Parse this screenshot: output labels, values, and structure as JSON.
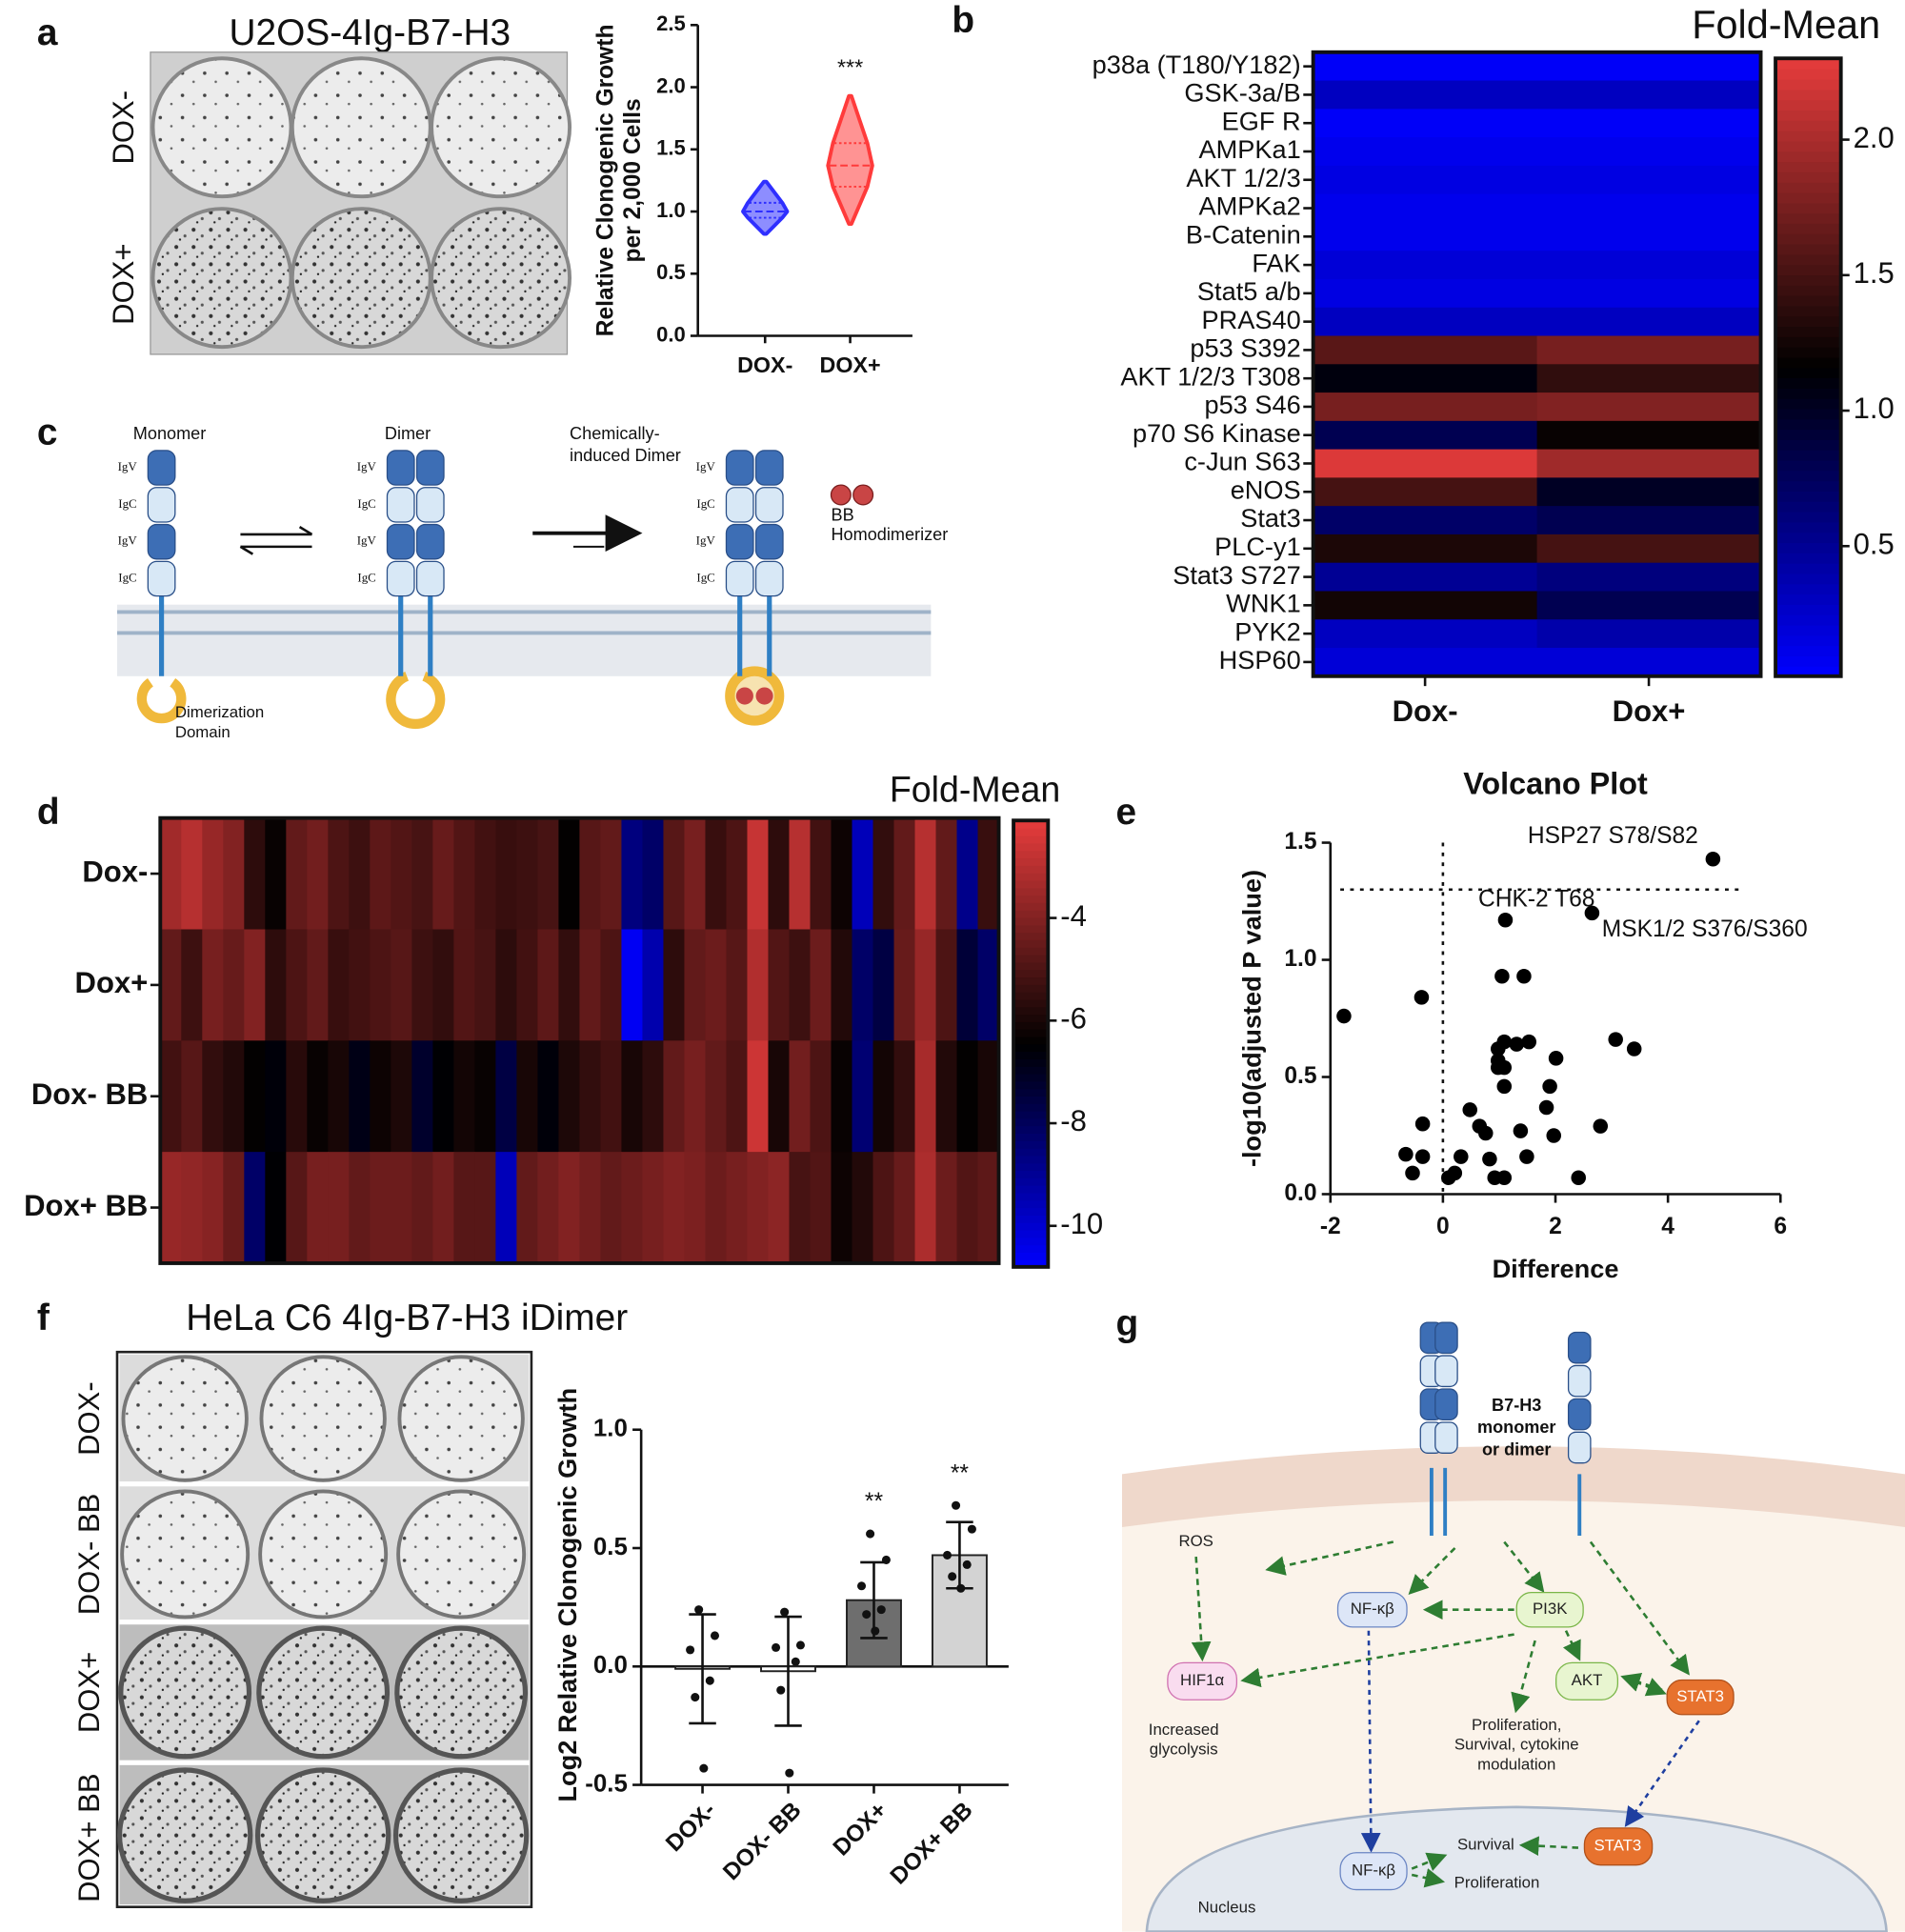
{
  "panel_labels": [
    "a",
    "b",
    "c",
    "d",
    "e",
    "f",
    "g"
  ],
  "panel_a": {
    "title": "U2OS-4Ig-B7-H3",
    "row_labels": [
      "DOX-",
      "DOX+"
    ]
  },
  "panel_c": {
    "monomer": "Monomer",
    "dimer": "Dimer",
    "chem_dimer": [
      "Chemically-",
      "induced Dimer"
    ],
    "homodimerizer": [
      "BB",
      "Homodimerizer"
    ],
    "domain": [
      "Dimerization",
      "Domain"
    ],
    "ig_domains": [
      "IgV",
      "IgC",
      "IgV",
      "IgC"
    ]
  },
  "panel_f": {
    "title": "HeLa C6 4Ig-B7-H3 iDimer",
    "row_labels": [
      "DOX-",
      "DOX- BB",
      "DOX+",
      "DOX+ BB"
    ]
  },
  "panel_g": {
    "receptor": [
      "B7-H3",
      "monomer",
      "or dimer"
    ],
    "ros": "ROS",
    "nfkb": "NF-κβ",
    "pi3k": "PI3K",
    "hif": "HIF1α",
    "akt": "AKT",
    "stat3": "STAT3",
    "glycolysis": [
      "Increased",
      "glycolysis"
    ],
    "outcomes": [
      "Proliferation,",
      "Survival, cytokine",
      "modulation"
    ],
    "nucleus": "Nucleus",
    "nfkb_nuc": "NF-κβ",
    "survival": "Survival",
    "proliferation": "Proliferation",
    "stat3_nuc": "STAT3"
  },
  "chart_data": [
    {
      "type": "violin",
      "ylabel": [
        "Relative Clonogenic Growth",
        "per 2,000 Cells"
      ],
      "categories": [
        "DOX-",
        "DOX+"
      ],
      "stats": [
        {
          "min": 0.82,
          "q1": 0.95,
          "median": 1.0,
          "q3": 1.07,
          "max": 1.24
        },
        {
          "min": 0.9,
          "q1": 1.2,
          "median": 1.37,
          "q3": 1.55,
          "max": 1.93
        }
      ],
      "colors": [
        "#2f2fff",
        "#ff3b3b"
      ],
      "significance": [
        null,
        "***"
      ],
      "ylim": [
        0,
        2.5
      ],
      "yticks": [
        {
          "value": 0,
          "label": "0.0"
        },
        0.5,
        {
          "value": 1,
          "label": "1.0"
        },
        1.5,
        {
          "value": 2,
          "label": "2.0"
        },
        2.5
      ]
    },
    {
      "type": "heatmap",
      "title": "Fold-Mean",
      "rows": [
        "p38a (T180/Y182)",
        "GSK-3a/B",
        "EGF R",
        "AMPKa1",
        "AKT 1/2/3",
        "AMPKa2",
        "B-Catenin",
        "FAK",
        "Stat5 a/b",
        "PRAS40",
        "p53 S392",
        "AKT 1/2/3 T308",
        "p53 S46",
        "p70 S6 Kinase",
        "c-Jun S63",
        "eNOS",
        "Stat3",
        "PLC-y1",
        "Stat3 S727",
        "WNK1",
        "PYK2",
        "HSP60"
      ],
      "columns": [
        "Dox-",
        "Dox+"
      ],
      "values": [
        [
          0.05,
          0.05
        ],
        [
          0.3,
          0.3
        ],
        [
          0.05,
          0.05
        ],
        [
          0.1,
          0.1
        ],
        [
          0.15,
          0.15
        ],
        [
          0.1,
          0.1
        ],
        [
          0.1,
          0.1
        ],
        [
          0.2,
          0.2
        ],
        [
          0.15,
          0.15
        ],
        [
          0.3,
          0.3
        ],
        [
          1.6,
          1.75
        ],
        [
          1.1,
          1.4
        ],
        [
          1.75,
          1.8
        ],
        [
          0.8,
          1.2
        ],
        [
          2.25,
          1.95
        ],
        [
          1.5,
          1.0
        ],
        [
          0.7,
          0.8
        ],
        [
          1.3,
          1.5
        ],
        [
          0.5,
          0.6
        ],
        [
          1.25,
          0.8
        ],
        [
          0.3,
          0.4
        ],
        [
          0.2,
          0.2
        ]
      ],
      "colormap": [
        "#0000ff",
        "#000000",
        "#e63c3c"
      ],
      "zlim": [
        0.02,
        2.3
      ],
      "zticks": [
        0.5,
        {
          "value": 1,
          "label": "1.0"
        },
        1.5,
        {
          "value": 2,
          "label": "2.0"
        }
      ]
    },
    {
      "type": "heatmap",
      "title": "Fold-Mean",
      "rows": [
        "Dox-",
        "Dox+",
        "Dox- BB",
        "Dox+ BB"
      ],
      "columns": [
        null,
        null,
        null,
        null,
        null,
        null,
        null,
        null,
        null,
        null,
        null,
        null,
        null,
        null,
        null,
        null,
        null,
        null,
        null,
        null,
        null,
        null,
        null,
        null,
        null,
        null,
        null,
        null,
        null,
        null,
        null,
        null,
        null,
        null,
        null,
        null,
        null,
        null,
        null,
        null
      ],
      "values": [
        [
          -3.4,
          -3.0,
          -3.6,
          -4.0,
          -5.6,
          -6.3,
          -4.6,
          -4.3,
          -5.0,
          -5.3,
          -4.7,
          -4.9,
          -5.1,
          -4.5,
          -4.9,
          -5.2,
          -5.4,
          -5.3,
          -5.1,
          -6.4,
          -4.8,
          -4.6,
          -8.6,
          -8.2,
          -4.8,
          -4.2,
          -5.4,
          -5.0,
          -2.7,
          -5.6,
          -3.0,
          -5.2,
          -6.2,
          -9.6,
          -5.5,
          -4.6,
          -3.0,
          -4.6,
          -8.8,
          -5.4
        ],
        [
          -4.6,
          -5.3,
          -4.2,
          -4.5,
          -4.0,
          -5.6,
          -5.0,
          -4.6,
          -5.4,
          -5.2,
          -5.0,
          -4.8,
          -5.3,
          -5.5,
          -4.9,
          -5.1,
          -5.6,
          -5.2,
          -4.7,
          -5.5,
          -4.6,
          -5.0,
          -10.6,
          -9.4,
          -5.6,
          -4.6,
          -4.4,
          -4.8,
          -3.1,
          -4.9,
          -5.3,
          -4.4,
          -5.8,
          -8.2,
          -7.6,
          -4.5,
          -3.6,
          -5.0,
          -7.4,
          -8.2
        ],
        [
          -5.2,
          -4.8,
          -5.5,
          -5.8,
          -6.4,
          -6.6,
          -5.7,
          -6.3,
          -6.0,
          -6.8,
          -6.2,
          -5.9,
          -7.2,
          -6.5,
          -6.1,
          -6.3,
          -7.6,
          -6.0,
          -6.6,
          -5.9,
          -5.5,
          -5.2,
          -6.0,
          -5.6,
          -4.6,
          -4.2,
          -4.6,
          -5.0,
          -2.6,
          -6.0,
          -4.3,
          -5.0,
          -6.3,
          -8.4,
          -6.1,
          -5.5,
          -3.3,
          -5.8,
          -6.4,
          -6.0
        ],
        [
          -3.6,
          -3.7,
          -3.9,
          -4.5,
          -8.2,
          -6.5,
          -4.8,
          -4.2,
          -4.2,
          -4.6,
          -4.4,
          -4.4,
          -4.6,
          -4.3,
          -4.8,
          -4.8,
          -9.6,
          -4.6,
          -4.3,
          -4.0,
          -4.3,
          -4.6,
          -4.4,
          -4.2,
          -4.0,
          -4.1,
          -4.4,
          -4.2,
          -4.0,
          -3.8,
          -5.1,
          -4.9,
          -6.2,
          -5.8,
          -5.0,
          -4.5,
          -3.2,
          -4.4,
          -4.9,
          -4.7
        ]
      ],
      "colormap": [
        "#0000ff",
        "#000000",
        "#e63c3c"
      ],
      "zlim": [
        -10.8,
        -2.1
      ],
      "zticks": [
        -4,
        -6,
        -8,
        -10
      ]
    },
    {
      "type": "scatter",
      "title": "Volcano Plot",
      "xlabel": "Difference",
      "ylabel": "-log10(adjusted P value)",
      "x": [
        -1.76,
        -0.38,
        4.8,
        1.11,
        2.65,
        1.05,
        1.44,
        3.07,
        3.4,
        -0.66,
        -0.36,
        -0.36,
        -0.54,
        0.1,
        0.32,
        0.21,
        0.48,
        0.65,
        0.76,
        0.83,
        0.92,
        1.09,
        0.98,
        0.98,
        1.09,
        0.98,
        1.09,
        1.31,
        1.53,
        1.09,
        1.38,
        1.49,
        1.84,
        2.01,
        1.9,
        1.97,
        2.41,
        2.8
      ],
      "y": [
        0.76,
        0.84,
        1.43,
        1.17,
        1.2,
        0.93,
        0.93,
        0.66,
        0.62,
        0.17,
        0.3,
        0.16,
        0.09,
        0.07,
        0.16,
        0.09,
        0.36,
        0.29,
        0.26,
        0.15,
        0.07,
        0.07,
        0.57,
        0.62,
        0.65,
        0.54,
        0.46,
        0.64,
        0.65,
        0.54,
        0.27,
        0.16,
        0.37,
        0.58,
        0.46,
        0.25,
        0.07,
        0.29
      ],
      "color": "#000000",
      "xlim": [
        -2,
        6
      ],
      "xticks": [
        -2,
        0,
        2,
        4,
        6
      ],
      "ylim": [
        0,
        1.5
      ],
      "yticks": [
        {
          "value": 0,
          "label": "0.0"
        },
        0.5,
        {
          "value": 1,
          "label": "1.0"
        },
        1.5
      ],
      "hlines": [
        1.3
      ],
      "vlines": [
        0
      ],
      "annotations": [
        {
          "text": "HSP27 S78/S82",
          "x": 4.8,
          "y": 1.43
        },
        {
          "text": "CHK-2 T68",
          "x": 1.11,
          "y": 1.17
        },
        {
          "text": "MSK1/2 S376/S360",
          "x": 2.65,
          "y": 1.2
        }
      ]
    },
    {
      "type": "bar",
      "ylabel": "Log2 Relative Clonogenic Growth",
      "categories": [
        "DOX-",
        "DOX- BB",
        "DOX+",
        "DOX+ BB"
      ],
      "values": [
        -0.01,
        -0.02,
        0.28,
        0.47
      ],
      "errors": [
        0.23,
        0.23,
        0.16,
        0.14
      ],
      "points": [
        [
          0.24,
          0.13,
          0.07,
          -0.06,
          -0.13,
          -0.43
        ],
        [
          0.23,
          0.09,
          0.08,
          0.02,
          -0.1,
          -0.45
        ],
        [
          0.56,
          0.45,
          0.34,
          0.24,
          0.22,
          0.15
        ],
        [
          0.68,
          0.58,
          0.47,
          0.43,
          0.38,
          0.33
        ]
      ],
      "colors": [
        "#ffffff",
        "#ffffff",
        "#6e6e6e",
        "#d3d3d3"
      ],
      "significance": [
        null,
        null,
        "**",
        "**"
      ],
      "ylim": [
        -0.5,
        1.0
      ],
      "yticks": [
        -0.5,
        {
          "value": 0,
          "label": "0.0"
        },
        0.5,
        {
          "value": 1,
          "label": "1.0"
        }
      ]
    }
  ]
}
